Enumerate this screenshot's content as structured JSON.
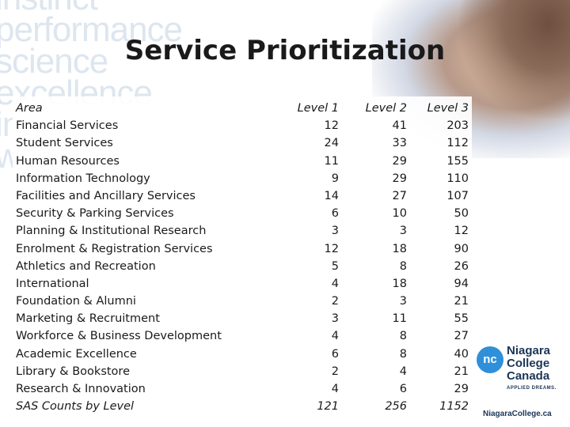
{
  "background_words": [
    "instinct",
    "performance",
    "science",
    "excellence",
    "in",
    "we"
  ],
  "title": "Service Prioritization",
  "table": {
    "headers": {
      "area": "Area",
      "level1": "Level 1",
      "level2": "Level 2",
      "level3": "Level 3"
    },
    "rows": [
      {
        "area": "Financial Services",
        "l1": "12",
        "l2": "41",
        "l3": "203"
      },
      {
        "area": "Student Services",
        "l1": "24",
        "l2": "33",
        "l3": "112"
      },
      {
        "area": "Human Resources",
        "l1": "11",
        "l2": "29",
        "l3": "155"
      },
      {
        "area": "Information Technology",
        "l1": "9",
        "l2": "29",
        "l3": "110"
      },
      {
        "area": "Facilities and Ancillary Services",
        "l1": "14",
        "l2": "27",
        "l3": "107"
      },
      {
        "area": "Security & Parking Services",
        "l1": "6",
        "l2": "10",
        "l3": "50"
      },
      {
        "area": "Planning & Institutional Research",
        "l1": "3",
        "l2": "3",
        "l3": "12"
      },
      {
        "area": "Enrolment & Registration Services",
        "l1": "12",
        "l2": "18",
        "l3": "90"
      },
      {
        "area": "Athletics and Recreation",
        "l1": "5",
        "l2": "8",
        "l3": "26"
      },
      {
        "area": "International",
        "l1": "4",
        "l2": "18",
        "l3": "94"
      },
      {
        "area": "Foundation & Alumni",
        "l1": "2",
        "l2": "3",
        "l3": "21"
      },
      {
        "area": "Marketing & Recruitment",
        "l1": "3",
        "l2": "11",
        "l3": "55"
      },
      {
        "area": "Workforce & Business Development",
        "l1": "4",
        "l2": "8",
        "l3": "27"
      },
      {
        "area": "Academic Excellence",
        "l1": "6",
        "l2": "8",
        "l3": "40"
      },
      {
        "area": "Library & Bookstore",
        "l1": "2",
        "l2": "4",
        "l3": "21"
      },
      {
        "area": "Research & Innovation",
        "l1": "4",
        "l2": "6",
        "l3": "29"
      }
    ],
    "totals": {
      "area": "SAS Counts by Level",
      "l1": "121",
      "l2": "256",
      "l3": "1152"
    }
  },
  "logo": {
    "mark": "nc",
    "line1": "Niagara",
    "line2": "College",
    "line3": "Canada",
    "tagline": "APPLIED DREAMS.",
    "website": "NiagaraCollege.ca"
  },
  "colors": {
    "logo_blue": "#2f8fd8",
    "logo_navy": "#1a3557",
    "bg_text": "#dde6ef"
  }
}
